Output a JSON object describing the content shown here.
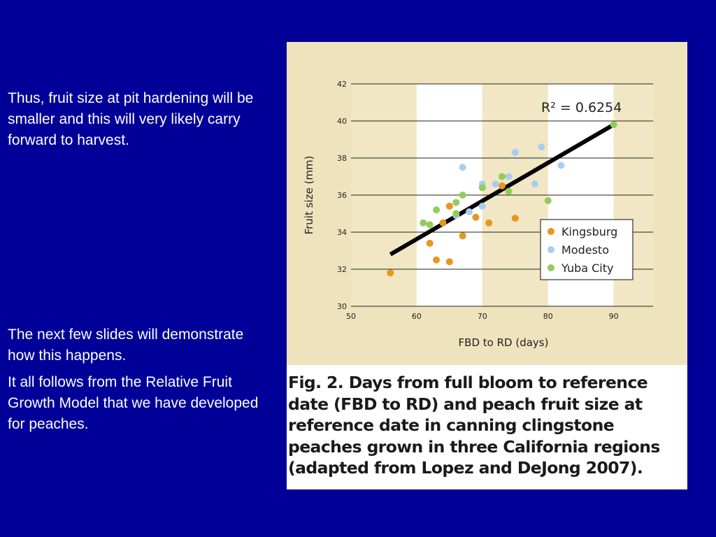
{
  "slide": {
    "background": "#000099",
    "text_color": "#ffffff",
    "paragraph1": "Thus, fruit size at pit hardening will be smaller and this will very likely carry forward to harvest.",
    "paragraph2": "The next few slides will demonstrate how this happens.",
    "paragraph3": "It all follows from the Relative Fruit Growth Model that we have developed for peaches."
  },
  "figure": {
    "caption": "Fig. 2. Days from full bloom to reference date (FBD to RD) and peach fruit size at reference date in canning clingstone peaches grown in three California regions (adapted from Lopez and DeJong 2007).",
    "panel_background": "#efe3bd",
    "band_colors": [
      "#f2e7c4",
      "#ffffff"
    ]
  },
  "chart_data": {
    "type": "scatter",
    "xlabel": "FBD to RD (days)",
    "ylabel": "Fruit size (mm)",
    "xlim": [
      50,
      96
    ],
    "ylim": [
      30,
      42
    ],
    "xticks": [
      50,
      60,
      70,
      80,
      90
    ],
    "yticks": [
      30,
      32,
      34,
      36,
      38,
      40,
      42
    ],
    "horizontal_grid": true,
    "annotation": "R² = 0.6254",
    "legend_position": "bottom-right",
    "regression_line": {
      "x": [
        56,
        90
      ],
      "y": [
        32.8,
        39.8
      ],
      "color": "#000000"
    },
    "series": [
      {
        "name": "Kingsburg",
        "color": "#e8961e",
        "x": [
          56,
          62,
          63,
          64,
          65,
          65,
          67,
          69,
          71,
          73,
          75
        ],
        "y": [
          31.8,
          33.4,
          32.5,
          34.5,
          32.4,
          35.4,
          33.8,
          34.8,
          34.5,
          36.5,
          34.75
        ]
      },
      {
        "name": "Modesto",
        "color": "#a9cdf0",
        "x": [
          66,
          67,
          68,
          70,
          70,
          72,
          74,
          75,
          78,
          79,
          82
        ],
        "y": [
          34.9,
          37.5,
          35.1,
          35.4,
          36.6,
          36.6,
          37.0,
          38.3,
          36.6,
          38.6,
          37.6
        ]
      },
      {
        "name": "Yuba City",
        "color": "#92cc5a",
        "x": [
          61,
          62,
          63,
          66,
          66,
          67,
          70,
          73,
          74,
          80,
          90
        ],
        "y": [
          34.5,
          34.4,
          35.2,
          35.6,
          35.0,
          36.0,
          36.4,
          37.0,
          36.2,
          35.7,
          39.8
        ]
      }
    ]
  }
}
